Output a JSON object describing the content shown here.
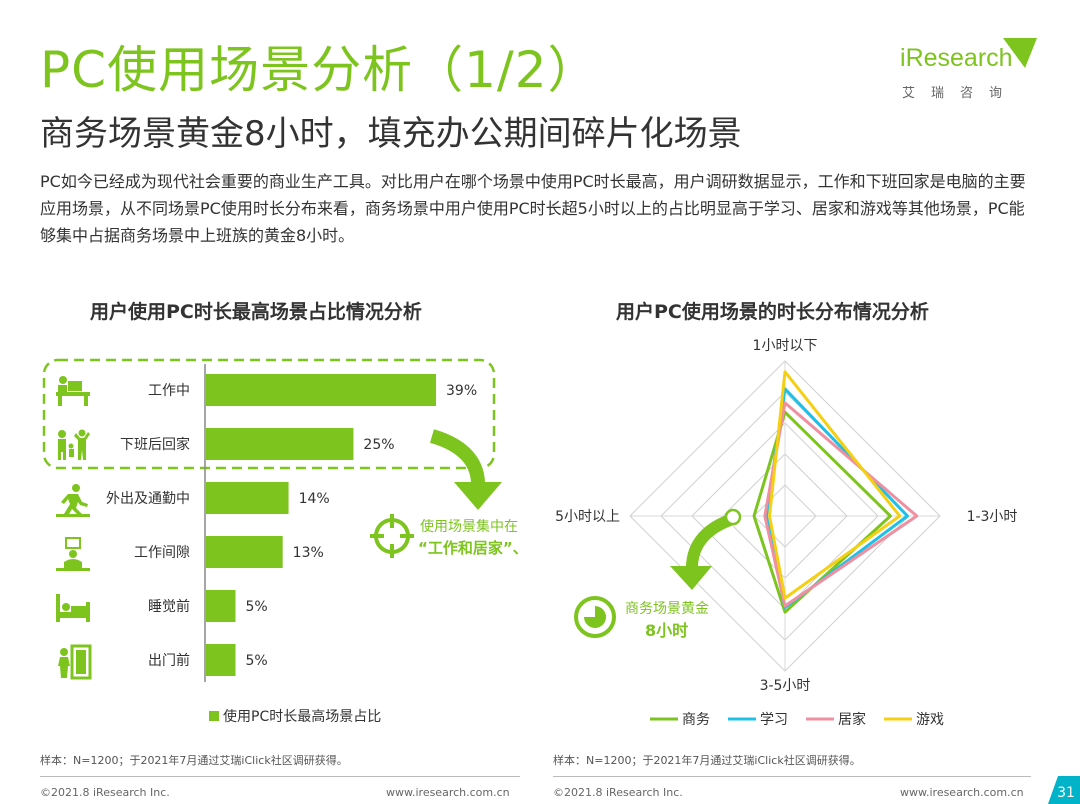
{
  "header": {
    "title": "PC使用场景分析（1/2）",
    "subtitle": "商务场景黄金8小时，填充办公期间碎片化场景",
    "intro": "PC如今已经成为现代社会重要的商业生产工具。对比用户在哪个场景中使用PC时长最高，用户调研数据显示，工作和下班回家是电脑的主要应用场景，从不同场景PC使用时长分布来看，商务场景中用户使用PC时长超5小时以上的占比明显高于学习、居家和游戏等其他场景，PC能够集中占据商务场景中上班族的黄金8小时。"
  },
  "logo": {
    "text_i": "i",
    "text_rest": "Research",
    "sub": "艾瑞咨询"
  },
  "colors": {
    "brand_green": "#7dc41f",
    "cyan": "#1ec0e8",
    "pink": "#ef8fa0",
    "yellow": "#f5cf12",
    "text_dark": "#333333"
  },
  "bar_chart": {
    "title": "用户使用PC时长最高场景占比情况分析",
    "callout_line1": "使用场景集中在",
    "callout_line2": "“工作和居家”、",
    "legend_label": "使用PC时长最高场景占比",
    "source": "样本：N=1200；于2021年7月通过艾瑞iClick社区调研获得。",
    "icons": [
      "office-desk-icon",
      "family-icon",
      "commute-icon",
      "work-break-icon",
      "bed-icon",
      "door-exit-icon",
      "target-icon"
    ]
  },
  "radar_chart": {
    "title": "用户PC使用场景的时长分布情况分析",
    "callout_line1": "商务场景黄金",
    "callout_line2": "8小时",
    "source": "样本：N=1200；于2021年7月通过艾瑞iClick社区调研获得。",
    "icons": [
      "clock-pie-icon"
    ]
  },
  "chart_data": [
    {
      "type": "bar",
      "orientation": "horizontal",
      "categories": [
        "工作中",
        "下班后回家",
        "外出及通勤中",
        "工作间隙",
        "睡觉前",
        "出门前"
      ],
      "values": [
        39,
        25,
        14,
        13,
        5,
        5
      ],
      "value_labels": [
        "39%",
        "25%",
        "14%",
        "13%",
        "5%",
        "5%"
      ],
      "series_name": "使用PC时长最高场景占比",
      "unit": "%",
      "xlim": [
        0,
        39
      ],
      "grid": false,
      "legend_position": "bottom"
    },
    {
      "type": "radar",
      "axes": [
        "1小时以下",
        "1-3小时",
        "3-5小时",
        "5小时以上"
      ],
      "rmax": 1,
      "rings": 5,
      "series": [
        {
          "name": "商务",
          "color": "#7dc41f",
          "values": [
            0.67,
            0.68,
            0.62,
            0.2
          ]
        },
        {
          "name": "学习",
          "color": "#1ec0e8",
          "values": [
            0.82,
            0.79,
            0.59,
            0.12
          ]
        },
        {
          "name": "居家",
          "color": "#ef8fa0",
          "values": [
            0.73,
            0.85,
            0.58,
            0.13
          ]
        },
        {
          "name": "游戏",
          "color": "#f5cf12",
          "values": [
            0.93,
            0.74,
            0.53,
            0.1
          ]
        }
      ],
      "legend_position": "bottom"
    }
  ],
  "footer": {
    "copyright": "©2021.8 iResearch Inc.",
    "url": "www.iresearch.com.cn",
    "page_number": "31"
  }
}
